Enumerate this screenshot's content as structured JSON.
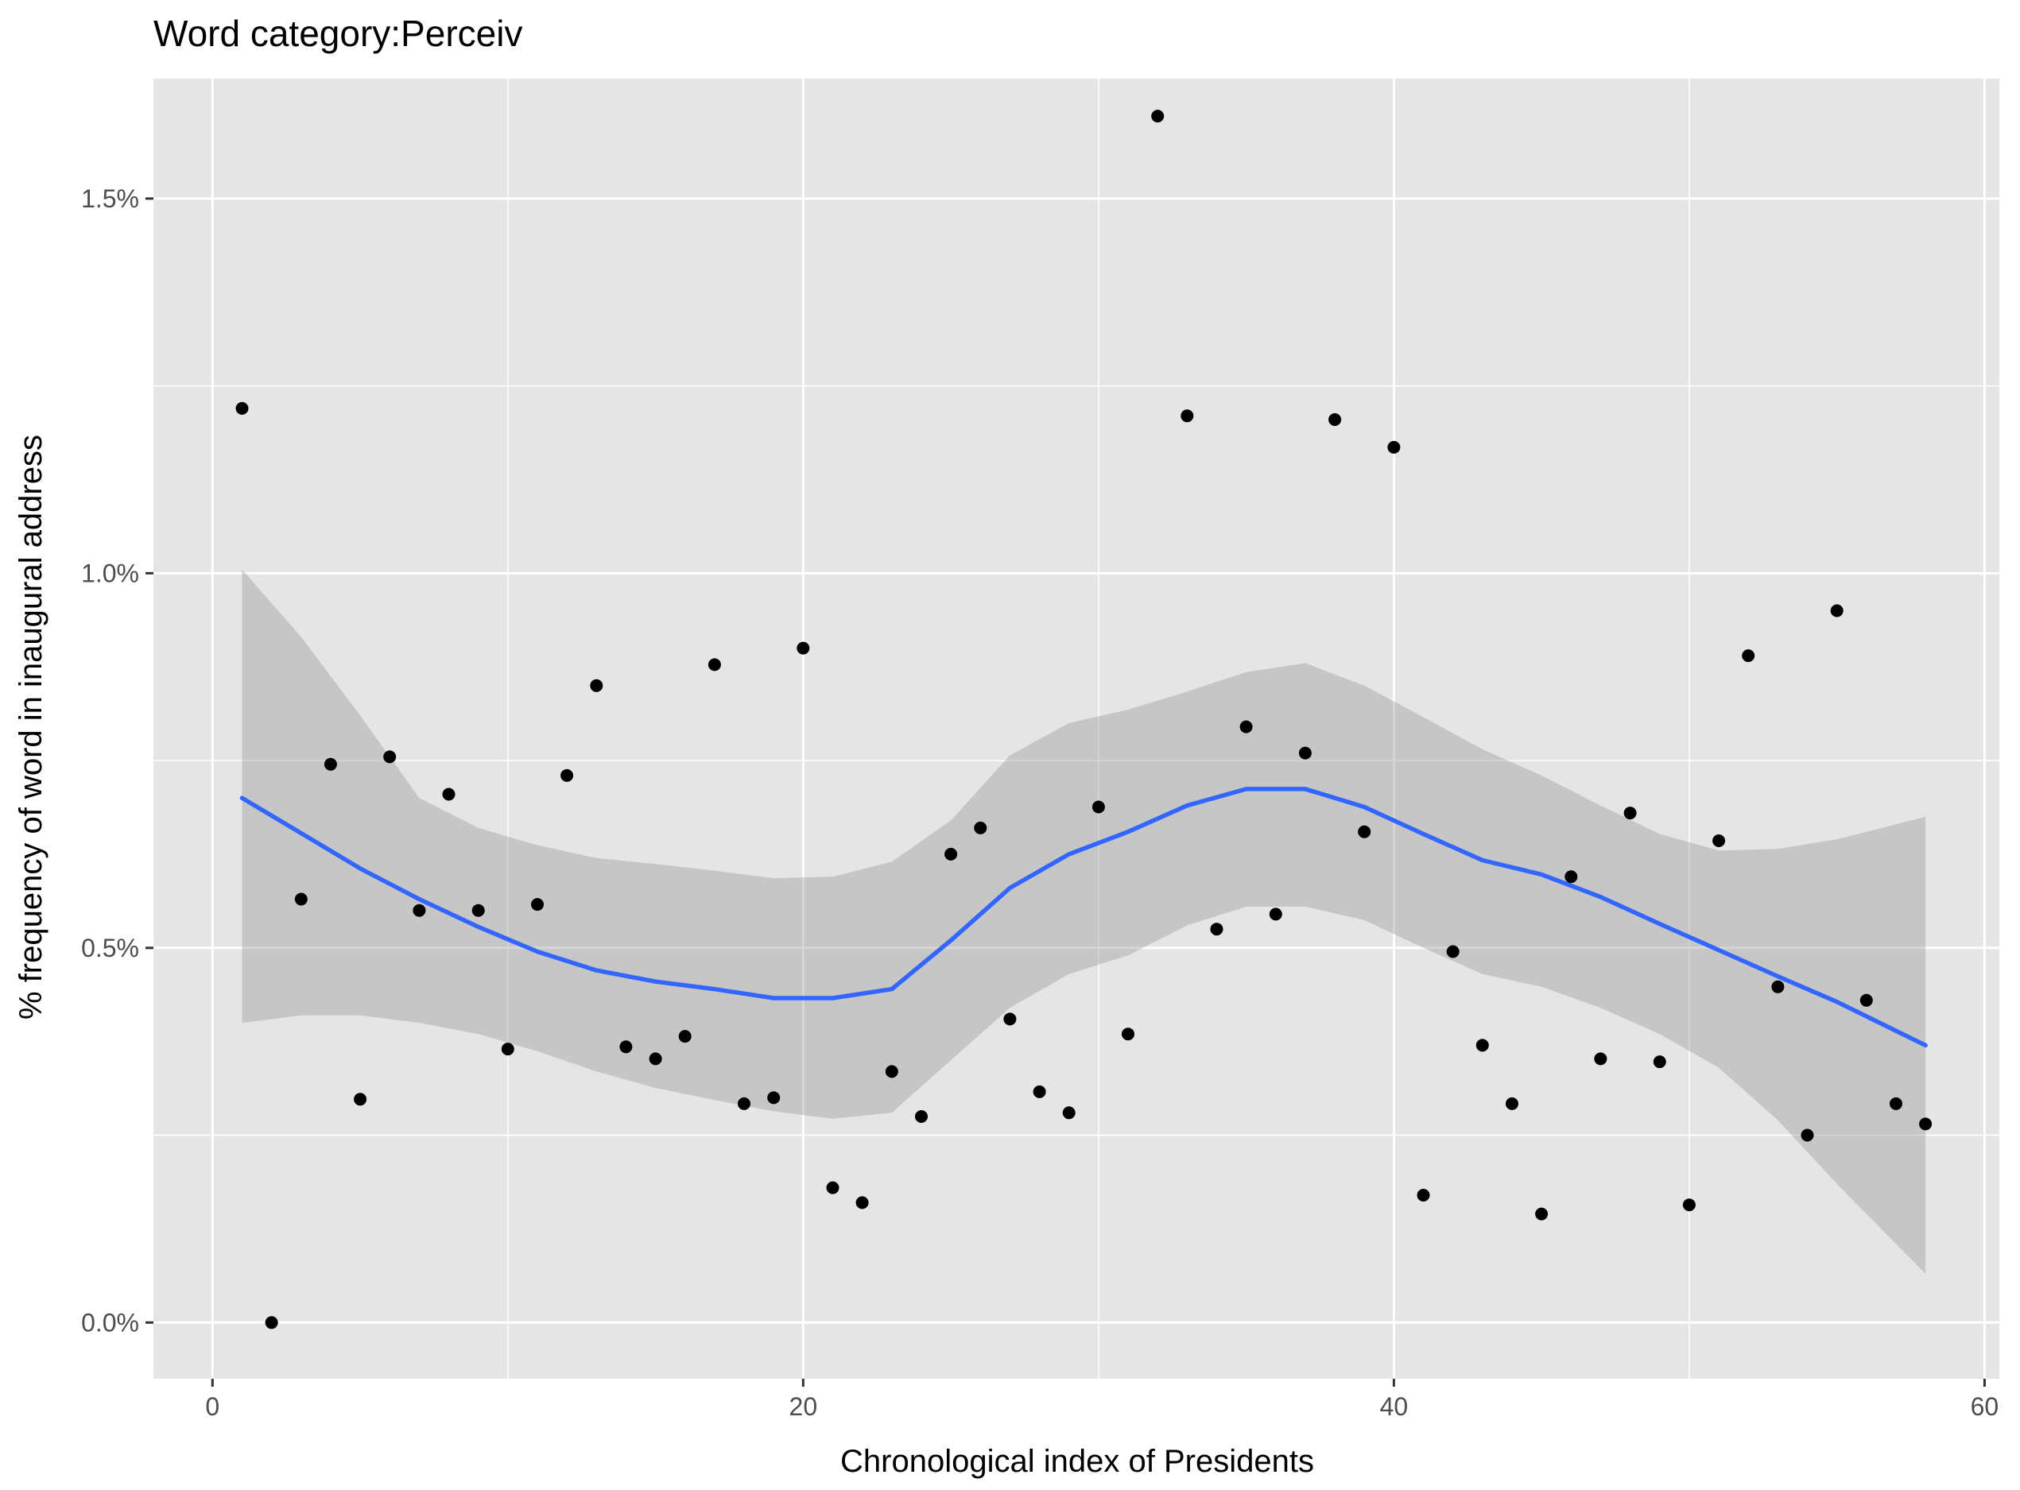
{
  "chart_data": {
    "type": "scatter",
    "title": "Word category:Perceiv",
    "xlabel": "Chronological index of Presidents",
    "ylabel": "% frequency of word in inaugural address",
    "xlim": [
      -2.0,
      60.5
    ],
    "ylim": [
      -0.075,
      1.66
    ],
    "x_ticks": [
      0,
      20,
      40,
      60
    ],
    "x_tick_labels": [
      "0",
      "20",
      "40",
      "60"
    ],
    "y_ticks": [
      0.0,
      0.5,
      1.0,
      1.5
    ],
    "y_tick_labels": [
      "0.0%",
      "0.5%",
      "1.0%",
      "1.5%"
    ],
    "grid": true,
    "background": "#e5e5e5",
    "grid_color": "#ffffff",
    "point_color": "#000000",
    "smooth_line_color": "#3366ff",
    "ribbon_color": "#999999",
    "points": [
      {
        "x": 1,
        "y": 1.22
      },
      {
        "x": 2,
        "y": 0.0
      },
      {
        "x": 3,
        "y": 0.565
      },
      {
        "x": 4,
        "y": 0.745
      },
      {
        "x": 5,
        "y": 0.298
      },
      {
        "x": 6,
        "y": 0.755
      },
      {
        "x": 7,
        "y": 0.55
      },
      {
        "x": 8,
        "y": 0.705
      },
      {
        "x": 9,
        "y": 0.55
      },
      {
        "x": 10,
        "y": 0.365
      },
      {
        "x": 11,
        "y": 0.558
      },
      {
        "x": 12,
        "y": 0.73
      },
      {
        "x": 13,
        "y": 0.85
      },
      {
        "x": 14,
        "y": 0.368
      },
      {
        "x": 15,
        "y": 0.352
      },
      {
        "x": 16,
        "y": 0.382
      },
      {
        "x": 17,
        "y": 0.878
      },
      {
        "x": 18,
        "y": 0.292
      },
      {
        "x": 19,
        "y": 0.3
      },
      {
        "x": 20,
        "y": 0.9
      },
      {
        "x": 21,
        "y": 0.18
      },
      {
        "x": 22,
        "y": 0.16
      },
      {
        "x": 23,
        "y": 0.335
      },
      {
        "x": 24,
        "y": 0.275
      },
      {
        "x": 25,
        "y": 0.625
      },
      {
        "x": 26,
        "y": 0.66
      },
      {
        "x": 27,
        "y": 0.405
      },
      {
        "x": 28,
        "y": 0.308
      },
      {
        "x": 29,
        "y": 0.28
      },
      {
        "x": 30,
        "y": 0.688
      },
      {
        "x": 31,
        "y": 0.385
      },
      {
        "x": 32,
        "y": 1.61
      },
      {
        "x": 33,
        "y": 1.21
      },
      {
        "x": 34,
        "y": 0.525
      },
      {
        "x": 35,
        "y": 0.795
      },
      {
        "x": 36,
        "y": 0.545
      },
      {
        "x": 37,
        "y": 0.76
      },
      {
        "x": 38,
        "y": 1.205
      },
      {
        "x": 39,
        "y": 0.655
      },
      {
        "x": 40,
        "y": 1.168
      },
      {
        "x": 41,
        "y": 0.17
      },
      {
        "x": 42,
        "y": 0.495
      },
      {
        "x": 43,
        "y": 0.37
      },
      {
        "x": 44,
        "y": 0.292
      },
      {
        "x": 45,
        "y": 0.145
      },
      {
        "x": 46,
        "y": 0.595
      },
      {
        "x": 47,
        "y": 0.352
      },
      {
        "x": 48,
        "y": 0.68
      },
      {
        "x": 49,
        "y": 0.348
      },
      {
        "x": 50,
        "y": 0.157
      },
      {
        "x": 51,
        "y": 0.643
      },
      {
        "x": 52,
        "y": 0.89
      },
      {
        "x": 53,
        "y": 0.448
      },
      {
        "x": 54,
        "y": 0.25
      },
      {
        "x": 55,
        "y": 0.95
      },
      {
        "x": 56,
        "y": 0.43
      },
      {
        "x": 57,
        "y": 0.292
      },
      {
        "x": 58,
        "y": 0.265
      }
    ],
    "smooth": {
      "x": [
        1,
        3,
        5,
        7,
        9,
        11,
        13,
        15,
        17,
        19,
        21,
        23,
        25,
        27,
        29,
        31,
        33,
        35,
        37,
        39,
        41,
        43,
        45,
        47,
        49,
        51,
        53,
        55,
        58
      ],
      "fit": [
        0.7,
        0.653,
        0.606,
        0.565,
        0.528,
        0.495,
        0.47,
        0.455,
        0.445,
        0.433,
        0.433,
        0.445,
        0.51,
        0.58,
        0.625,
        0.655,
        0.69,
        0.712,
        0.712,
        0.688,
        0.652,
        0.617,
        0.598,
        0.568,
        0.532,
        0.497,
        0.462,
        0.428,
        0.37
      ],
      "upper": [
        1.005,
        0.915,
        0.81,
        0.7,
        0.66,
        0.637,
        0.62,
        0.612,
        0.603,
        0.593,
        0.595,
        0.615,
        0.67,
        0.757,
        0.8,
        0.818,
        0.842,
        0.868,
        0.88,
        0.85,
        0.808,
        0.765,
        0.73,
        0.69,
        0.652,
        0.63,
        0.632,
        0.645,
        0.675
      ],
      "lower": [
        0.4,
        0.41,
        0.41,
        0.4,
        0.385,
        0.362,
        0.335,
        0.313,
        0.297,
        0.282,
        0.272,
        0.28,
        0.35,
        0.42,
        0.465,
        0.49,
        0.53,
        0.555,
        0.555,
        0.537,
        0.5,
        0.465,
        0.448,
        0.42,
        0.385,
        0.34,
        0.27,
        0.185,
        0.065
      ]
    }
  }
}
